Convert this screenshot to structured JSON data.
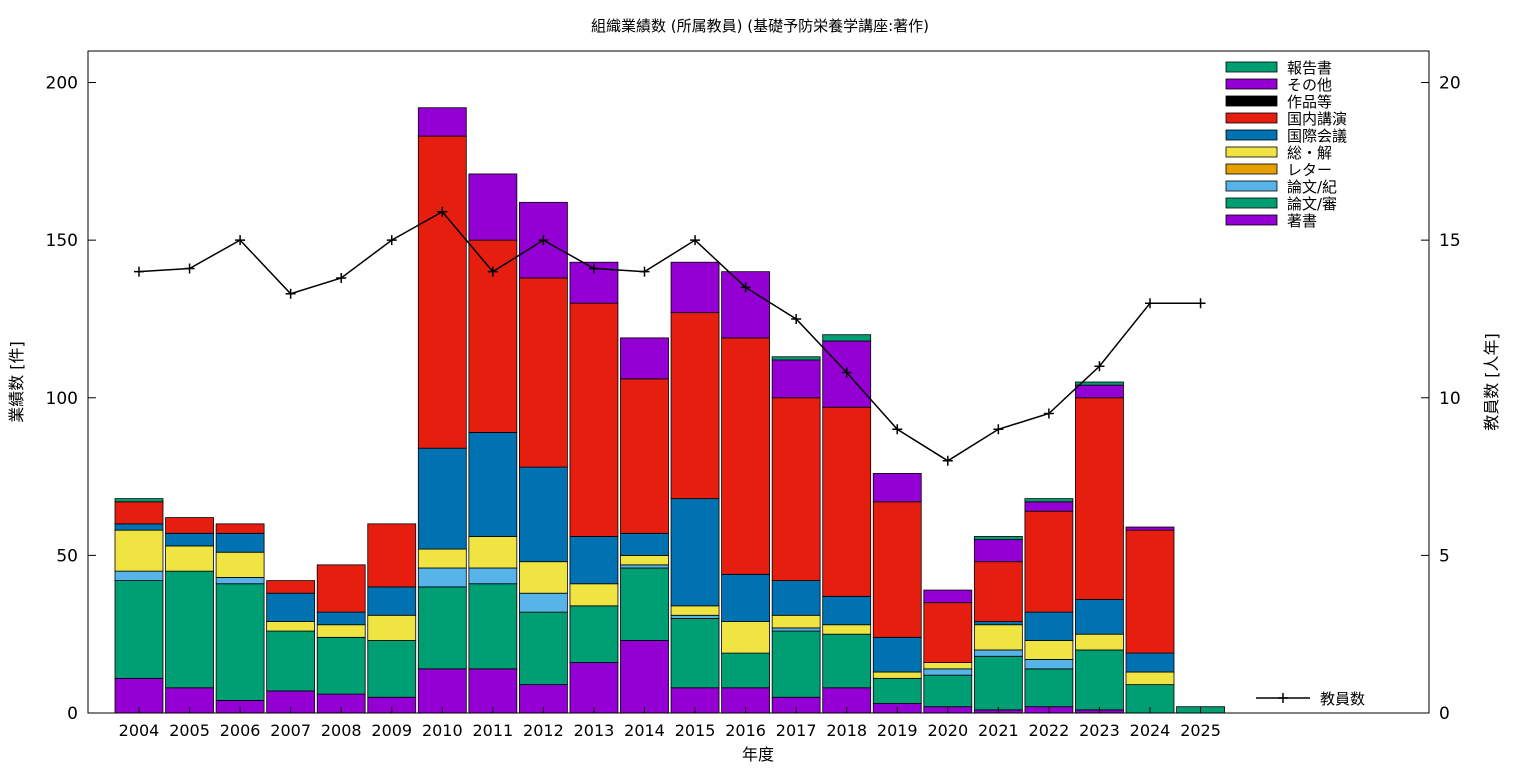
{
  "chart_data": {
    "type": "bar",
    "stacked": true,
    "title": "組織業績数 (所属教員) (基礎予防栄養学講座:著作)",
    "xlabel": "年度",
    "ylabel": "業績数 [件]",
    "y2label": "教員数 [人年]",
    "ylim": [
      0,
      210
    ],
    "y2lim": [
      0,
      21
    ],
    "yticks": [
      0,
      50,
      100,
      150,
      200
    ],
    "y2ticks": [
      0,
      5,
      10,
      15,
      20
    ],
    "grid": false,
    "legend_position": "top-right",
    "categories": [
      "2004",
      "2005",
      "2006",
      "2007",
      "2008",
      "2009",
      "2010",
      "2011",
      "2012",
      "2013",
      "2014",
      "2015",
      "2016",
      "2017",
      "2018",
      "2019",
      "2020",
      "2021",
      "2022",
      "2023",
      "2024",
      "2025"
    ],
    "series": [
      {
        "name": "著書",
        "color": "#9400d3",
        "values": [
          11,
          8,
          4,
          7,
          6,
          5,
          14,
          14,
          9,
          16,
          23,
          8,
          8,
          5,
          8,
          3,
          2,
          1,
          2,
          1,
          0,
          0
        ]
      },
      {
        "name": "論文/審",
        "color": "#009e73",
        "values": [
          31,
          37,
          37,
          19,
          18,
          18,
          26,
          27,
          23,
          18,
          23,
          22,
          11,
          21,
          17,
          8,
          10,
          17,
          12,
          19,
          9,
          0
        ]
      },
      {
        "name": "論文/紀",
        "color": "#56b4e9",
        "values": [
          3,
          0,
          2,
          0,
          0,
          0,
          6,
          5,
          6,
          0,
          1,
          1,
          0,
          1,
          0,
          0,
          2,
          2,
          3,
          0,
          0,
          0
        ]
      },
      {
        "name": "レター",
        "color": "#e69f00",
        "values": [
          0,
          0,
          0,
          0,
          0,
          0,
          0,
          0,
          0,
          0,
          0,
          0,
          0,
          0,
          0,
          0,
          0,
          0,
          0,
          0,
          0,
          0
        ]
      },
      {
        "name": "総・解",
        "color": "#f0e442",
        "values": [
          13,
          8,
          8,
          3,
          4,
          8,
          6,
          10,
          10,
          7,
          3,
          3,
          10,
          4,
          3,
          2,
          2,
          8,
          6,
          5,
          4,
          0
        ]
      },
      {
        "name": "国際会議",
        "color": "#0072b2",
        "values": [
          2,
          4,
          6,
          9,
          4,
          9,
          32,
          33,
          30,
          15,
          7,
          34,
          15,
          11,
          9,
          11,
          0,
          1,
          9,
          11,
          6,
          0
        ]
      },
      {
        "name": "国内講演",
        "color": "#e51e10",
        "values": [
          7,
          5,
          3,
          4,
          15,
          20,
          99,
          61,
          60,
          74,
          49,
          59,
          75,
          58,
          60,
          43,
          19,
          19,
          32,
          64,
          39,
          0
        ]
      },
      {
        "name": "作品等",
        "color": "#000000",
        "values": [
          0,
          0,
          0,
          0,
          0,
          0,
          0,
          0,
          0,
          0,
          0,
          0,
          0,
          0,
          0,
          0,
          0,
          0,
          0,
          0,
          0,
          0
        ]
      },
      {
        "name": "その他",
        "color": "#9400d3",
        "values": [
          0,
          0,
          0,
          0,
          0,
          0,
          9,
          21,
          24,
          13,
          13,
          16,
          21,
          12,
          21,
          9,
          4,
          7,
          3,
          4,
          1,
          0
        ]
      },
      {
        "name": "報告書",
        "color": "#009e73",
        "values": [
          1,
          0,
          0,
          0,
          0,
          0,
          0,
          0,
          0,
          0,
          0,
          0,
          0,
          1,
          2,
          0,
          0,
          1,
          1,
          1,
          0,
          2
        ]
      }
    ],
    "line_series": {
      "name": "教員数",
      "axis": "y2",
      "color": "#000000",
      "values": [
        14.0,
        14.1,
        15.0,
        13.3,
        13.8,
        15.0,
        15.9,
        14.0,
        15.0,
        14.1,
        14.0,
        15.0,
        13.5,
        12.5,
        10.8,
        9.0,
        8.0,
        9.0,
        9.5,
        11.0,
        13.0,
        13.0
      ]
    }
  }
}
